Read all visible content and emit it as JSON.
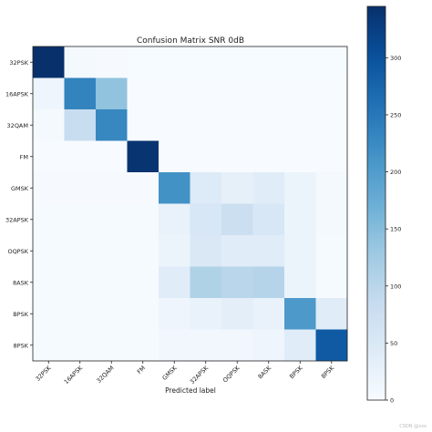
{
  "chart_data": {
    "type": "heatmap",
    "title": "Confusion Matrix SNR 0dB",
    "xlabel": "Predicted label",
    "ylabel": "",
    "row_labels": [
      "32PSK",
      "16APSK",
      "32QAM",
      "FM",
      "GMSK",
      "32APSK",
      "OQPSK",
      "8ASK",
      "BPSK",
      "8PSK"
    ],
    "col_labels": [
      "32PSK",
      "16APSK",
      "32QAM",
      "FM",
      "GMSK",
      "32APSK",
      "OQPSK",
      "8ASK",
      "BPSK",
      "8PSK"
    ],
    "values": [
      [
        345,
        5,
        2,
        1,
        1,
        1,
        1,
        1,
        1,
        1
      ],
      [
        15,
        235,
        140,
        0,
        0,
        0,
        0,
        0,
        0,
        0
      ],
      [
        5,
        80,
        230,
        0,
        0,
        0,
        0,
        0,
        0,
        0
      ],
      [
        0,
        0,
        0,
        340,
        0,
        0,
        0,
        0,
        0,
        0
      ],
      [
        2,
        2,
        2,
        2,
        215,
        45,
        30,
        40,
        20,
        5
      ],
      [
        3,
        3,
        3,
        3,
        25,
        55,
        75,
        55,
        20,
        5
      ],
      [
        3,
        3,
        3,
        3,
        20,
        50,
        40,
        40,
        20,
        3
      ],
      [
        3,
        3,
        3,
        3,
        40,
        110,
        100,
        105,
        20,
        3
      ],
      [
        3,
        3,
        3,
        3,
        15,
        25,
        35,
        25,
        205,
        40
      ],
      [
        3,
        3,
        3,
        3,
        10,
        10,
        10,
        15,
        40,
        290
      ]
    ],
    "colorbar": {
      "range": [
        0,
        345
      ],
      "ticks": [
        0,
        50,
        100,
        150,
        200,
        250,
        300
      ]
    },
    "colormap": "Blues",
    "grid": false
  },
  "watermark": "CSDN @xxx"
}
